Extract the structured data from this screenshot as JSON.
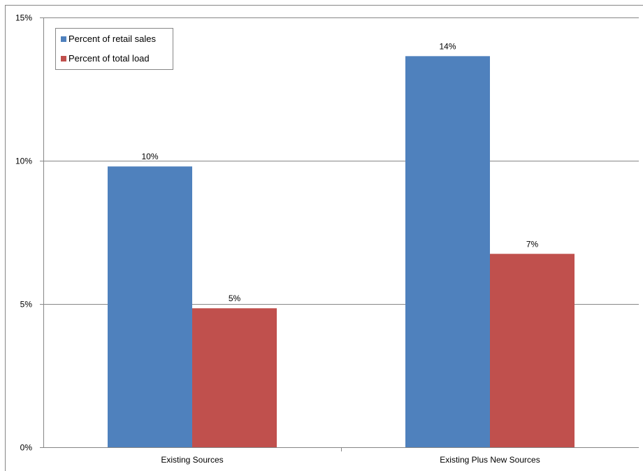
{
  "chart_data": {
    "type": "bar",
    "categories": [
      "Existing Sources",
      "Existing Plus New Sources"
    ],
    "series": [
      {
        "name": "Percent of retail sales",
        "color": "#4F81BD",
        "values": [
          9.8,
          13.65
        ],
        "labels": [
          "10%",
          "14%"
        ]
      },
      {
        "name": "Percent of total load",
        "color": "#C0504D",
        "values": [
          4.85,
          6.75
        ],
        "labels": [
          "5%",
          "7%"
        ]
      }
    ],
    "ylim": [
      0,
      15
    ],
    "yticks": [
      0,
      5,
      10,
      15
    ],
    "ytick_labels": [
      "0%",
      "5%",
      "10%",
      "15%"
    ],
    "grid": true,
    "legend_position": "top-left",
    "xlabel": "",
    "ylabel": ""
  }
}
